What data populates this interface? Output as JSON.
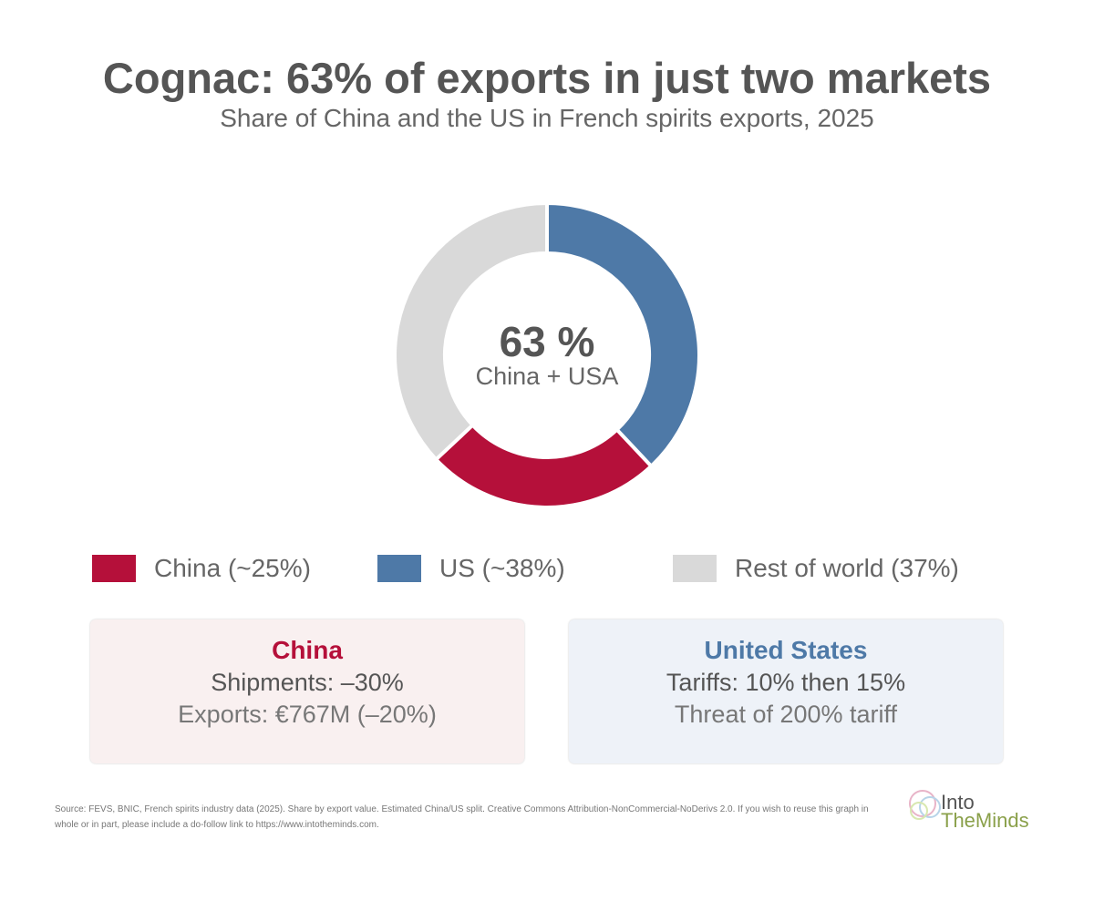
{
  "chart_data": {
    "type": "pie",
    "variant": "donut",
    "title": "Cognac: 63% of exports in just two markets",
    "subtitle": "Share of China and the US in French spirits exports, 2025",
    "slices": [
      {
        "label": "US (~38%)",
        "value": 38,
        "color": "#4e79a7"
      },
      {
        "label": "China (~25%)",
        "value": 25,
        "color": "#b5103a"
      },
      {
        "label": "Rest of world (37%)",
        "value": 37,
        "color": "#d9d9d9"
      }
    ],
    "center_value": "63 %",
    "center_label": "China + USA",
    "legend_placement": "bottom"
  },
  "legend": [
    "China (~25%)",
    "US (~38%)",
    "Rest of world (37%)"
  ],
  "boxes": {
    "china": {
      "heading": "China",
      "line1": "Shipments: –30%",
      "line2": "Exports: €767M (–20%)",
      "color": "#b5103a",
      "bg": "#f9f0f0"
    },
    "us": {
      "heading": "United States",
      "line1": "Tariffs: 10% then 15%",
      "line2": "Threat of 200% tariff",
      "color": "#4e79a7",
      "bg": "#eef2f8"
    }
  },
  "footer": "Source: FEVS, BNIC, French spirits industry data (2025). Share by export value. Estimated China/US split. Creative Commons Attribution-NonCommercial-NoDerivs 2.0. If you wish to reuse this graph in whole or in part, please include a do-follow link to https://www.intotheminds.com.",
  "logo": {
    "line1": "Into",
    "line2": "TheMinds"
  }
}
